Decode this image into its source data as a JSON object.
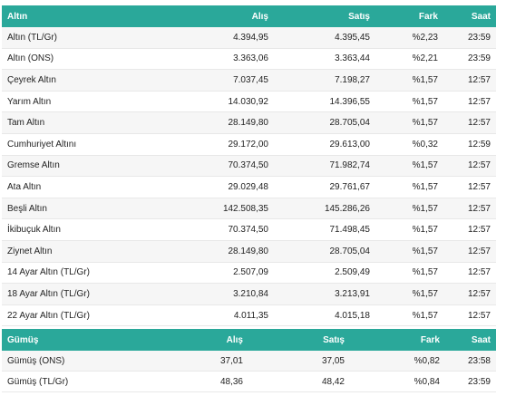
{
  "gold": {
    "headers": [
      "Altın",
      "Alış",
      "Satış",
      "Fark",
      "Saat"
    ],
    "rows": [
      [
        "Altın (TL/Gr)",
        "4.394,95",
        "4.395,45",
        "%2,23",
        "23:59"
      ],
      [
        "Altın (ONS)",
        "3.363,06",
        "3.363,44",
        "%2,21",
        "23:59"
      ],
      [
        "Çeyrek Altın",
        "7.037,45",
        "7.198,27",
        "%1,57",
        "12:57"
      ],
      [
        "Yarım Altın",
        "14.030,92",
        "14.396,55",
        "%1,57",
        "12:57"
      ],
      [
        "Tam Altın",
        "28.149,80",
        "28.705,04",
        "%1,57",
        "12:57"
      ],
      [
        "Cumhuriyet Altını",
        "29.172,00",
        "29.613,00",
        "%0,32",
        "12:59"
      ],
      [
        "Gremse Altın",
        "70.374,50",
        "71.982,74",
        "%1,57",
        "12:57"
      ],
      [
        "Ata Altın",
        "29.029,48",
        "29.761,67",
        "%1,57",
        "12:57"
      ],
      [
        "Beşli Altın",
        "142.508,35",
        "145.286,26",
        "%1,57",
        "12:57"
      ],
      [
        "İkibuçuk Altın",
        "70.374,50",
        "71.498,45",
        "%1,57",
        "12:57"
      ],
      [
        "Ziynet Altın",
        "28.149,80",
        "28.705,04",
        "%1,57",
        "12:57"
      ],
      [
        "14 Ayar Altın (TL/Gr)",
        "2.507,09",
        "2.509,49",
        "%1,57",
        "12:57"
      ],
      [
        "18 Ayar Altın (TL/Gr)",
        "3.210,84",
        "3.213,91",
        "%1,57",
        "12:57"
      ],
      [
        "22 Ayar Altın (TL/Gr)",
        "4.011,35",
        "4.015,18",
        "%1,57",
        "12:57"
      ]
    ]
  },
  "silver": {
    "headers": [
      "Gümüş",
      "Alış",
      "Satış",
      "Fark",
      "Saat"
    ],
    "rows": [
      [
        "Gümüş (ONS)",
        "37,01",
        "37,05",
        "%0,82",
        "23:58"
      ],
      [
        "Gümüş (TL/Gr)",
        "48,36",
        "48,42",
        "%0,84",
        "23:59"
      ]
    ]
  },
  "colors": {
    "header_bg": "#2aa89a",
    "header_text": "#ffffff",
    "row_alt": "#f6f6f6"
  }
}
